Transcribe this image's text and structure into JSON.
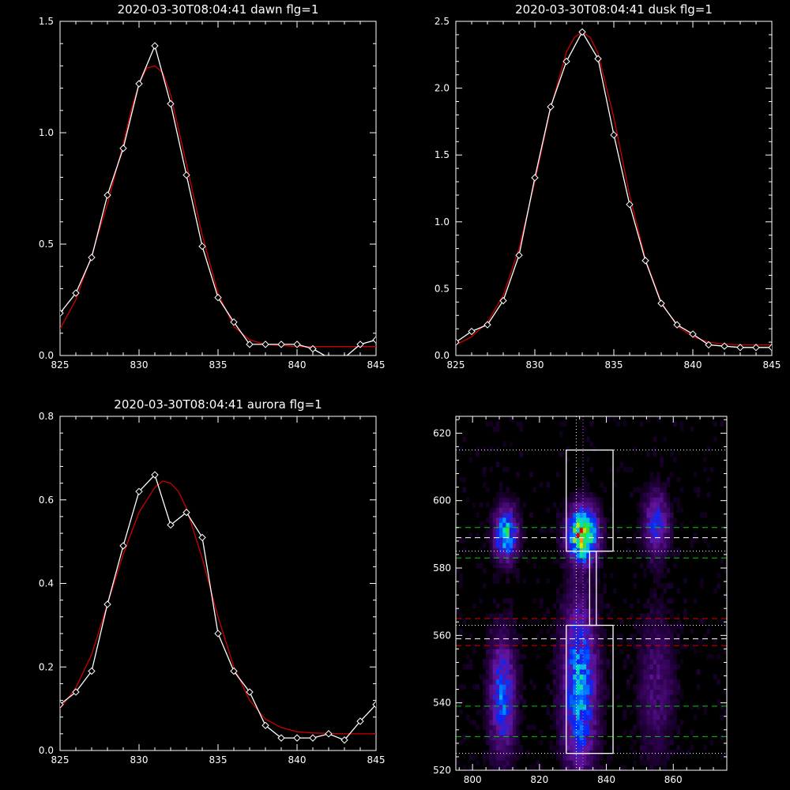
{
  "chart_data": [
    {
      "type": "line",
      "title": "2020-03-30T08:04:41 dawn flg=1",
      "xlim": [
        825,
        845
      ],
      "ylim": [
        0,
        1.5
      ],
      "xticks": [
        "825",
        "830",
        "835",
        "840",
        "845"
      ],
      "yticks": [
        "0.0",
        "0.5",
        "1.0",
        "1.5"
      ],
      "series": [
        {
          "color": "#ffffff",
          "marker": "diamond",
          "x": [
            825,
            826,
            827,
            828,
            829,
            830,
            831,
            832,
            833,
            834,
            835,
            836,
            837,
            838,
            839,
            840,
            841,
            842,
            843,
            844,
            845
          ],
          "y": [
            0.19,
            0.28,
            0.44,
            0.72,
            0.93,
            1.22,
            1.39,
            1.13,
            0.81,
            0.49,
            0.26,
            0.15,
            0.05,
            0.05,
            0.05,
            0.05,
            0.03,
            -0.01,
            -0.01,
            0.05,
            0.07
          ]
        },
        {
          "color": "#cc0000",
          "x": [
            825,
            826,
            827,
            828,
            829,
            829.5,
            830,
            830.5,
            831,
            831.5,
            832,
            833,
            834,
            835,
            836,
            837,
            838,
            839,
            840,
            841,
            842,
            843,
            844,
            845
          ],
          "y": [
            0.12,
            0.25,
            0.45,
            0.68,
            0.95,
            1.1,
            1.22,
            1.29,
            1.3,
            1.27,
            1.17,
            0.86,
            0.54,
            0.28,
            0.13,
            0.07,
            0.05,
            0.045,
            0.04,
            0.04,
            0.04,
            0.04,
            0.04,
            0.04
          ]
        }
      ]
    },
    {
      "type": "line",
      "title": "2020-03-30T08:04:41 dusk flg=1",
      "xlim": [
        825,
        845
      ],
      "ylim": [
        0,
        2.5
      ],
      "xticks": [
        "825",
        "830",
        "835",
        "840",
        "845"
      ],
      "yticks": [
        "0.0",
        "0.5",
        "1.0",
        "1.5",
        "2.0",
        "2.5"
      ],
      "series": [
        {
          "color": "#ffffff",
          "marker": "diamond",
          "x": [
            825,
            826,
            827,
            828,
            829,
            830,
            831,
            832,
            833,
            834,
            835,
            836,
            837,
            838,
            839,
            840,
            841,
            842,
            843,
            844,
            845
          ],
          "y": [
            0.1,
            0.18,
            0.23,
            0.41,
            0.75,
            1.33,
            1.86,
            2.2,
            2.42,
            2.22,
            1.65,
            1.13,
            0.71,
            0.39,
            0.23,
            0.16,
            0.08,
            0.07,
            0.06,
            0.06,
            0.06
          ]
        },
        {
          "color": "#cc0000",
          "x": [
            825,
            826,
            827,
            828,
            829,
            830,
            831,
            832,
            832.5,
            833,
            833.5,
            834,
            835,
            836,
            837,
            838,
            839,
            840,
            841,
            842,
            843,
            844,
            845
          ],
          "y": [
            0.08,
            0.14,
            0.25,
            0.45,
            0.8,
            1.3,
            1.85,
            2.27,
            2.38,
            2.42,
            2.38,
            2.26,
            1.78,
            1.2,
            0.72,
            0.4,
            0.22,
            0.14,
            0.1,
            0.085,
            0.08,
            0.08,
            0.08
          ]
        }
      ]
    },
    {
      "type": "line",
      "title": "2020-03-30T08:04:41 aurora flg=1",
      "xlim": [
        825,
        845
      ],
      "ylim": [
        0,
        0.8
      ],
      "xticks": [
        "825",
        "830",
        "835",
        "840",
        "845"
      ],
      "yticks": [
        "0.0",
        "0.2",
        "0.4",
        "0.6",
        "0.8"
      ],
      "series": [
        {
          "color": "#ffffff",
          "marker": "diamond",
          "x": [
            825,
            826,
            827,
            828,
            829,
            830,
            831,
            832,
            833,
            834,
            835,
            836,
            837,
            838,
            839,
            840,
            841,
            842,
            843,
            844,
            845
          ],
          "y": [
            0.11,
            0.14,
            0.19,
            0.35,
            0.49,
            0.62,
            0.66,
            0.54,
            0.57,
            0.51,
            0.28,
            0.19,
            0.14,
            0.06,
            0.03,
            0.03,
            0.03,
            0.04,
            0.025,
            0.07,
            0.11
          ]
        },
        {
          "color": "#cc0000",
          "x": [
            825,
            826,
            827,
            828,
            829,
            830,
            831,
            831.5,
            832,
            832.5,
            833,
            834,
            835,
            836,
            837,
            838,
            839,
            840,
            841,
            842,
            843,
            844,
            845
          ],
          "y": [
            0.1,
            0.15,
            0.23,
            0.35,
            0.47,
            0.57,
            0.63,
            0.645,
            0.64,
            0.62,
            0.58,
            0.46,
            0.32,
            0.2,
            0.12,
            0.075,
            0.055,
            0.045,
            0.042,
            0.041,
            0.04,
            0.04,
            0.04
          ]
        }
      ]
    },
    {
      "type": "heatmap",
      "title": "",
      "xlim": [
        795,
        876
      ],
      "ylim": [
        520,
        625
      ],
      "xticks": [
        800,
        820,
        840,
        860
      ],
      "yticks": [
        520,
        540,
        560,
        580,
        600,
        620
      ],
      "blobs": [
        {
          "x": 810,
          "y": 590,
          "sx": 2.2,
          "sy": 5,
          "amp": 0.6
        },
        {
          "x": 809,
          "y": 542,
          "sx": 2.5,
          "sy": 11,
          "amp": 0.42
        },
        {
          "x": 833,
          "y": 590,
          "sx": 2.8,
          "sy": 5,
          "amp": 1.0
        },
        {
          "x": 832,
          "y": 545,
          "sx": 3.2,
          "sy": 16,
          "amp": 0.55
        },
        {
          "x": 855,
          "y": 593,
          "sx": 2.5,
          "sy": 6,
          "amp": 0.35
        },
        {
          "x": 855,
          "y": 545,
          "sx": 3.5,
          "sy": 14,
          "amp": 0.15
        }
      ],
      "boxes": [
        {
          "x0": 828,
          "x1": 842,
          "y0": 585,
          "y1": 615
        },
        {
          "x0": 828,
          "x1": 842,
          "y0": 525,
          "y1": 563
        },
        {
          "x0": 835,
          "x1": 837,
          "y0": 563,
          "y1": 585
        }
      ],
      "hlines": [
        {
          "y": 615,
          "color": "#ffffff",
          "style": "dotted"
        },
        {
          "y": 592,
          "color": "#00cc00",
          "style": "dashed"
        },
        {
          "y": 589,
          "color": "#ffffff",
          "style": "dashed"
        },
        {
          "y": 585,
          "color": "#ffffff",
          "style": "dotted"
        },
        {
          "y": 583,
          "color": "#00cc00",
          "style": "dashed"
        },
        {
          "y": 565,
          "color": "#dd0000",
          "style": "dashed"
        },
        {
          "y": 563,
          "color": "#ffffff",
          "style": "dotted"
        },
        {
          "y": 559,
          "color": "#ffffff",
          "style": "dashed"
        },
        {
          "y": 557,
          "color": "#dd0000",
          "style": "dashed"
        },
        {
          "y": 539,
          "color": "#00cc00",
          "style": "dashed"
        },
        {
          "y": 530,
          "color": "#00cc00",
          "style": "dashed"
        },
        {
          "y": 525,
          "color": "#ffffff",
          "style": "dotted"
        }
      ],
      "vlines": [
        {
          "x": 831,
          "color": "#ffffff",
          "style": "dotted"
        },
        {
          "x": 833,
          "color": "#cc66ff",
          "style": "dotted"
        }
      ]
    }
  ]
}
